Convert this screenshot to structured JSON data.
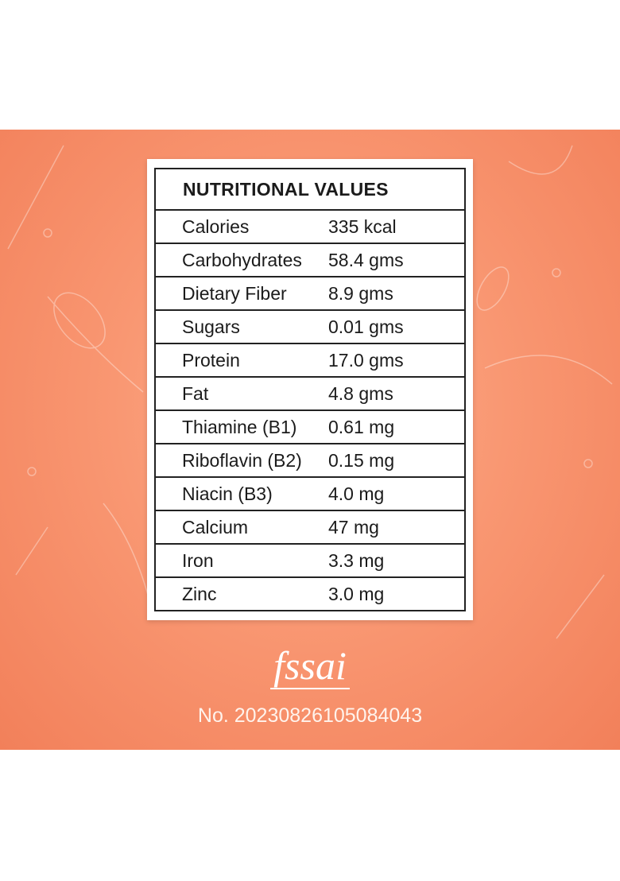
{
  "title": "NUTRITIONAL VALUES",
  "rows": [
    {
      "nutrient": "Calories",
      "value": "335 kcal"
    },
    {
      "nutrient": "Carbohydrates",
      "value": "58.4 gms"
    },
    {
      "nutrient": "Dietary Fiber",
      "value": "8.9 gms"
    },
    {
      "nutrient": "Sugars",
      "value": "0.01 gms"
    },
    {
      "nutrient": "Protein",
      "value": "17.0 gms"
    },
    {
      "nutrient": "Fat",
      "value": "4.8 gms"
    },
    {
      "nutrient": "Thiamine (B1)",
      "value": "0.61 mg"
    },
    {
      "nutrient": "Riboflavin (B2)",
      "value": "0.15 mg"
    },
    {
      "nutrient": "Niacin (B3)",
      "value": "4.0 mg"
    },
    {
      "nutrient": "Calcium",
      "value": "47 mg"
    },
    {
      "nutrient": "Iron",
      "value": "3.3 mg"
    },
    {
      "nutrient": "Zinc",
      "value": "3.0 mg"
    }
  ],
  "logo_text": "fssai",
  "license": "No. 20230826105084043",
  "colors": {
    "background": "#f99772",
    "card": "#ffffff",
    "text": "#1b1b1b"
  }
}
